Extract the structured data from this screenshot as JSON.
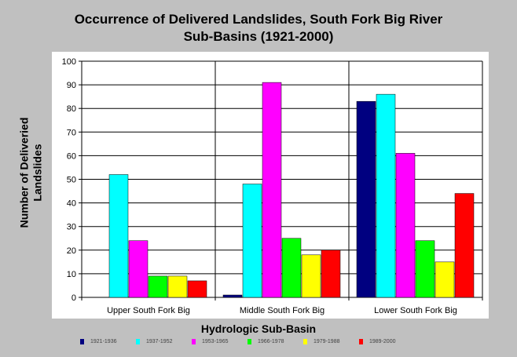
{
  "chart_data": {
    "type": "bar",
    "title_lines": [
      "Occurrence of Delivered Landslides, South Fork Big River",
      "Sub-Basins (1921-2000)"
    ],
    "ylabel_lines": [
      "Number of Deliveried",
      "Landslides"
    ],
    "xlabel": "Hydrologic Sub-Basin",
    "ylim": [
      0,
      100
    ],
    "yticks": [
      "0",
      "10",
      "20",
      "30",
      "40",
      "50",
      "60",
      "70",
      "80",
      "90",
      "100"
    ],
    "grid": "horizontal",
    "legend_position": "bottom",
    "categories": [
      "Upper South Fork Big",
      "Middle South Fork Big",
      "Lower South Fork Big"
    ],
    "series": [
      {
        "name": "1921-1936",
        "color": "#000080",
        "values": [
          0,
          1,
          83
        ]
      },
      {
        "name": "1937-1952",
        "color": "#00ffff",
        "values": [
          52,
          48,
          86
        ]
      },
      {
        "name": "1953-1965",
        "color": "#ff00ff",
        "values": [
          24,
          91,
          61
        ]
      },
      {
        "name": "1966-1978",
        "color": "#00ff00",
        "values": [
          9,
          25,
          24
        ]
      },
      {
        "name": "1979-1988",
        "color": "#ffff00",
        "values": [
          9,
          18,
          15
        ]
      },
      {
        "name": "1989-2000",
        "color": "#ff0000",
        "values": [
          7,
          20,
          44
        ]
      }
    ]
  }
}
